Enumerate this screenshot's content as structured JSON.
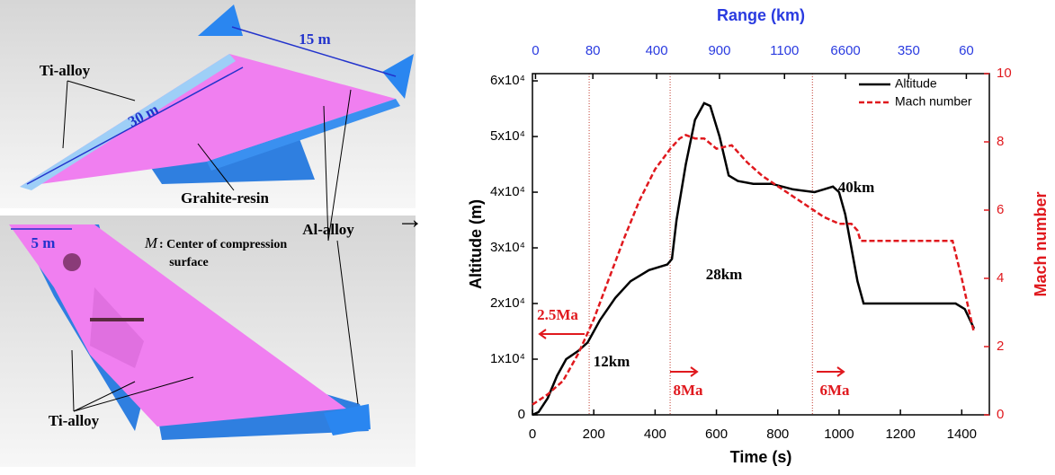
{
  "diagram": {
    "top": {
      "span": "15 m",
      "skin": "Ti-alloy",
      "length": "30 m",
      "middle": "Grahite-resin"
    },
    "shared": {
      "fins": "Al-alloy"
    },
    "bottom": {
      "width": "5 m",
      "point": "M",
      "point_note": ": Center of compression",
      "point_note_2": "surface",
      "body": "Ti-alloy"
    }
  },
  "chart_data": {
    "type": "line",
    "xlabel": "Time (s)",
    "ylabel": "Altitude (m)",
    "y2label": "Mach number",
    "x2label": "Range (km)",
    "xlim": [
      0,
      1490
    ],
    "xticks": [
      0,
      200,
      400,
      600,
      800,
      1000,
      1200,
      1400
    ],
    "ylim": [
      0,
      61300
    ],
    "yticks": [
      0,
      {
        "value": 10000,
        "label": "1x10⁴"
      },
      {
        "value": 20000,
        "label": "2x10⁴"
      },
      {
        "value": 30000,
        "label": "3x10⁴"
      },
      {
        "value": 40000,
        "label": "4x10⁴"
      },
      {
        "value": 50000,
        "label": "5x10⁴"
      },
      {
        "value": 60000,
        "label": "6x10⁴"
      }
    ],
    "y2lim": [
      0,
      10
    ],
    "y2ticks": [
      0,
      2,
      4,
      6,
      8,
      10
    ],
    "x2ticks": [
      {
        "value": 10,
        "label": "0"
      },
      {
        "value": 197,
        "label": "80"
      },
      {
        "value": 405,
        "label": "400"
      },
      {
        "value": 610,
        "label": "900"
      },
      {
        "value": 822,
        "label": "1100"
      },
      {
        "value": 1021,
        "label": "6600"
      },
      {
        "value": 1227,
        "label": "350"
      },
      {
        "value": 1415,
        "label": "60"
      }
    ],
    "legend": "upper right",
    "series": [
      {
        "name": "Altitude",
        "color": "#000000",
        "x": [
          0,
          20,
          50,
          80,
          110,
          150,
          180,
          220,
          270,
          320,
          380,
          440,
          455,
          470,
          500,
          530,
          560,
          580,
          610,
          640,
          670,
          720,
          780,
          850,
          920,
          950,
          980,
          1000,
          1020,
          1040,
          1060,
          1080,
          1150,
          1300,
          1380,
          1410,
          1440
        ],
        "values": [
          0,
          500,
          3000,
          7000,
          10000,
          11500,
          13000,
          17000,
          21000,
          24000,
          26000,
          27000,
          28000,
          35000,
          45000,
          53000,
          56000,
          55500,
          50000,
          43000,
          42000,
          41500,
          41500,
          40500,
          40000,
          40500,
          41000,
          40000,
          36000,
          30000,
          24000,
          20000,
          20000,
          20000,
          20000,
          19000,
          15500
        ]
      },
      {
        "name": "Mach number",
        "color": "#e0191e",
        "axis": "y2",
        "dash": true,
        "x": [
          0,
          50,
          100,
          150,
          200,
          250,
          300,
          350,
          400,
          450,
          480,
          500,
          530,
          560,
          600,
          650,
          700,
          750,
          800,
          850,
          900,
          950,
          1000,
          1040,
          1060,
          1070,
          1200,
          1370,
          1400,
          1440
        ],
        "values": [
          0.3,
          0.6,
          1.0,
          1.8,
          2.8,
          4.0,
          5.2,
          6.3,
          7.2,
          7.8,
          8.1,
          8.2,
          8.1,
          8.1,
          7.8,
          7.9,
          7.4,
          7.0,
          6.7,
          6.4,
          6.1,
          5.8,
          5.6,
          5.6,
          5.4,
          5.1,
          5.1,
          5.1,
          4.0,
          2.4
        ]
      }
    ],
    "reference_lines": {
      "x": [
        185,
        449,
        913
      ],
      "color": "#c0392b"
    },
    "annotations": [
      "2.5Ma",
      "8Ma",
      "6Ma",
      "12km",
      "28km",
      "40km"
    ]
  }
}
